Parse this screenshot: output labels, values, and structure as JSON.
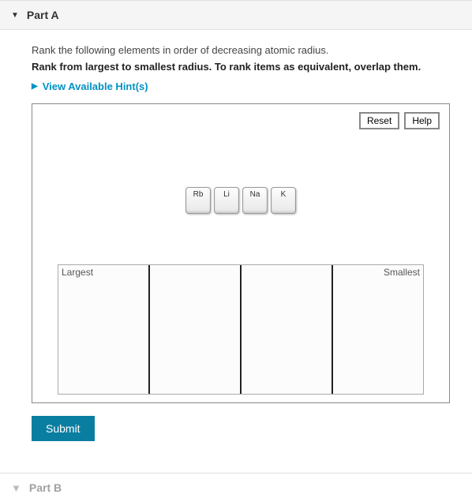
{
  "partA": {
    "title": "Part A",
    "instruction1": "Rank the following elements in order of decreasing atomic radius.",
    "instruction2": "Rank from largest to smallest radius. To rank items as equivalent, overlap them.",
    "hints_label": "View Available Hint(s)",
    "toolbar": {
      "reset": "Reset",
      "help": "Help"
    },
    "tiles": [
      "Rb",
      "Li",
      "Na",
      "K"
    ],
    "rank": {
      "slots": 4,
      "left_label": "Largest",
      "right_label": "Smallest"
    },
    "submit": "Submit"
  },
  "partB": {
    "title": "Part B"
  },
  "style": {
    "accent_color": "#0092c3",
    "submit_bg": "#0a7ea0",
    "header_bg": "#f5f5f5",
    "border_color": "#888"
  }
}
